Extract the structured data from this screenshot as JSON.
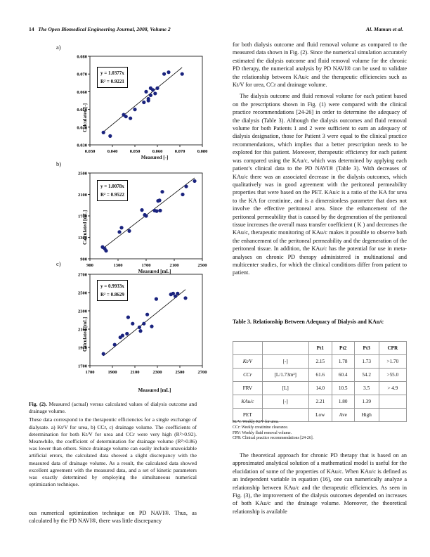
{
  "header": {
    "page_number": "14",
    "journal": "The Open Biomedical Engineering Journal, 2008, Volume 2",
    "authors": "Al. Mamun et al."
  },
  "figure": {
    "panels": [
      {
        "label": "a)",
        "xlabel": "Measured [-]",
        "ylabel": "Calculated [-]",
        "eq1": "y = 1.0377x",
        "eq2": "R² = 0.9221",
        "xticks": [
          "0.030",
          "0.040",
          "0.050",
          "0.060",
          "0.070",
          "0.080"
        ],
        "yticks": [
          "0.030",
          "0.040",
          "0.050",
          "0.060",
          "0.070",
          "0.080"
        ]
      },
      {
        "label": "b)",
        "xlabel": "Measured [mL]",
        "ylabel": "Calculated [mL]",
        "eq1": "y = 1.0078x",
        "eq2": "R² = 0.9522",
        "xticks": [
          "900",
          "1300",
          "1700",
          "2100",
          "2500"
        ],
        "yticks": [
          "900",
          "1300",
          "1700",
          "2100",
          "2500"
        ]
      },
      {
        "label": "c)",
        "xlabel": "Measured [mL]",
        "ylabel": "Calculated [mL]",
        "eq1": "y = 0.9933x",
        "eq2": "R² = 0.8629",
        "xticks": [
          "1700",
          "1900",
          "2100",
          "2300",
          "2500",
          "2700"
        ],
        "yticks": [
          "1700",
          "1900",
          "2100",
          "2300",
          "2500",
          "2700"
        ]
      }
    ],
    "caption_title": "Fig. (2).",
    "caption": " Measured (actual) versus calculated values of dialysis outcome and drainage volume.",
    "caption_body": "These data correspond to the therapeutic efficiencies for a single exchange of dialysate. a) Kt/V for urea, b) CCr, c) drainage volume. The coefficients of determination for both Kt/V for urea and CCr were very high (R²>0.92). Meanwhile, the coefficient of determination for drainage volume (R²>0.86) was lower than others. Since drainage volume can easily include unavoidable artificial errors, the calculated data showed a slight discrepancy with the measured data of drainage volume. As a result, the calculated data showed excellent agreement with the measured data, and a set of kinetic parameters was exactly determined by employing the simultaneous numerical optimization technique."
  },
  "chart_data": [
    {
      "type": "scatter",
      "title": "a)",
      "xlabel": "Measured [-]",
      "ylabel": "Calculated [-]",
      "xlim": [
        0.03,
        0.08
      ],
      "ylim": [
        0.03,
        0.08
      ],
      "x": [
        0.036,
        0.039,
        0.045,
        0.046,
        0.048,
        0.05,
        0.054,
        0.055,
        0.056,
        0.056,
        0.057,
        0.057,
        0.058,
        0.059,
        0.06,
        0.063,
        0.065,
        0.071
      ],
      "y": [
        0.037,
        0.035,
        0.047,
        0.046,
        0.045,
        0.05,
        0.054,
        0.06,
        0.056,
        0.055,
        0.062,
        0.058,
        0.061,
        0.059,
        0.062,
        0.07,
        0.071,
        0.07
      ],
      "fit": {
        "slope": 1.0377,
        "r2": 0.9221
      }
    },
    {
      "type": "scatter",
      "title": "b)",
      "xlabel": "Measured [mL]",
      "ylabel": "Calculated [mL]",
      "xlim": [
        900,
        2500
      ],
      "ylim": [
        900,
        2500
      ],
      "x": [
        1080,
        1110,
        1130,
        1320,
        1350,
        1460,
        1640,
        1680,
        1700,
        1820,
        1850,
        1870,
        1890,
        1900,
        1930,
        2220,
        2270,
        2390
      ],
      "y": [
        1120,
        1090,
        1050,
        1400,
        1480,
        1420,
        1810,
        1720,
        1700,
        1800,
        1790,
        1980,
        1990,
        1800,
        2150,
        2100,
        2250,
        2350
      ],
      "fit": {
        "slope": 1.0078,
        "r2": 0.9522
      }
    },
    {
      "type": "scatter",
      "title": "c)",
      "xlabel": "Measured [mL]",
      "ylabel": "Calculated [mL]",
      "xlim": [
        1700,
        2700
      ],
      "ylim": [
        1700,
        2700
      ],
      "x": [
        1820,
        1920,
        1970,
        1990,
        2030,
        2040,
        2080,
        2140,
        2150,
        2180,
        2210,
        2250,
        2290,
        2420,
        2440,
        2460,
        2480,
        2550
      ],
      "y": [
        1830,
        1930,
        2010,
        2030,
        2050,
        2230,
        2160,
        2120,
        2080,
        2160,
        2260,
        2130,
        2430,
        2480,
        2490,
        2460,
        2490,
        2440
      ],
      "fit": {
        "slope": 0.9933,
        "r2": 0.8629
      }
    }
  ],
  "bottom_left": "ous numerical optimization technique on PD NAVI®. Thus, as calculated by the PD NAVI®, there was little discrepancy",
  "right_col": {
    "p1": "for both dialysis outcome and fluid removal volume as compared to the measured data shown in Fig. (2). Since the numerical simulation accurately estimated the dialysis outcome and fluid removal volume for the chronic PD therapy, the numerical analysis by PD NAVI® can be used to validate the relationship between KAu/c and the therapeutic efficiencies such as Kt/V for urea, CCr and drainage volume.",
    "p2": "The dialysis outcome and fluid removal volume for each patient based on the prescriptions shown in Fig. (1) were compared with the clinical practice recommendations [24-26] in order to determine the adequacy of the dialysis (Table 3). Although the dialysis outcomes and fluid removal volume for both Patients 1 and 2 were sufficient to earn an adequacy of dialysis designation, those for Patient 3 were equal to the clinical practice recommendations, which implies that a better prescription needs to be explored for this patient. Moreover, therapeutic efficiency for each patient was compared using the KAu/c, which was determined by applying each patient’s clinical data to the PD NAVI® (Table 3). With decreases of KAu/c there was an associated decrease in the dialysis outcomes, which qualitatively was in good agreement with the peritoneal permeability properties that were based on the PET. KAu/c is a ratio of the KA for urea to the KA for creatinine, and is a dimensionless parameter that does not involve the effective peritoneal area. Since the enhancement of the peritoneal permeability that is caused by the degeneration of the peritoneal tissue increases the overall mass transfer coefficient ( K ) and decreases the KAu/c, therapeutic monitoring of KAu/c makes it possible to observe both the enhancement of the peritoneal permeability and the degeneration of the peritoneal tissue. In addition, the KAu/c has the potential for use in meta-analyses on chronic PD therapy administered in multinational and multicenter studies, for which the clinical conditions differ from patient to patient."
  },
  "table": {
    "title": "Table 3.    Relationship Between Adequacy of Dialysis and KAu/c",
    "headers": [
      "",
      "",
      "Pt1",
      "Pt2",
      "Pt3",
      "CPR"
    ],
    "rows": [
      [
        "Kt/V",
        "[-]",
        "2.15",
        "1.78",
        "1.73",
        ">1.70"
      ],
      [
        "CCr",
        "[L/1.73m²]",
        "61.6",
        "60.4",
        "54.2",
        ">55.0"
      ],
      [
        "FRV",
        "[L]",
        "14.0",
        "10.5",
        "3.5",
        "> 4.9"
      ],
      [
        "KAu/c",
        "[-]",
        "2.21",
        "1.80",
        "1.39",
        ""
      ],
      [
        "PET",
        "",
        "Low",
        "Ave",
        "High",
        ""
      ]
    ],
    "notes": [
      "Kt/V: Weekly Kt/V for urea.",
      "CCr: Weekly creatinine clearance.",
      "FRV: Weekly fluid removal volume.",
      "CPR: Clinical practice recommendations [24-26]."
    ]
  },
  "bottom_right": "The theoretical approach for chronic PD therapy that is based on an approximated analytical solution of a mathematical model is useful for the elucidation of some of the properties of KAu/c. When KAu/c is defined as an independent variable in equation (16), one can numerically analyze a relationship between KAu/c and the therapeutic efficiencies. As seen in Fig. (3), the improvement of the dialysis outcomes depended on increases of both KAu/c and the drainage volume. Moreover, the theoretical relationship is available"
}
